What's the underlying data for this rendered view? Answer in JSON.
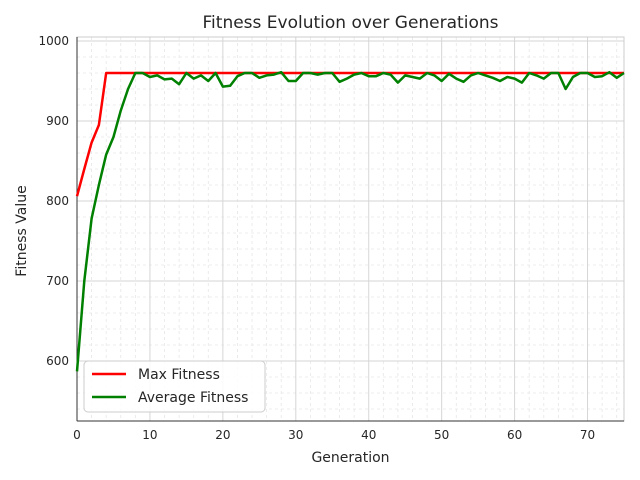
{
  "chart_data": {
    "type": "line",
    "title": "Fitness Evolution over Generations",
    "xlabel": "Generation",
    "ylabel": "Fitness Value",
    "xlim": [
      0,
      75
    ],
    "ylim": [
      525,
      1005
    ],
    "xticks": [
      0,
      10,
      20,
      30,
      40,
      50,
      60,
      70
    ],
    "yticks": [
      600,
      700,
      800,
      900,
      1000
    ],
    "grid": true,
    "minor_grid": true,
    "legend_position": "lower-left",
    "x": [
      0,
      1,
      2,
      3,
      4,
      5,
      6,
      7,
      8,
      9,
      10,
      11,
      12,
      13,
      14,
      15,
      16,
      17,
      18,
      19,
      20,
      21,
      22,
      23,
      24,
      25,
      26,
      27,
      28,
      29,
      30,
      31,
      32,
      33,
      34,
      35,
      36,
      37,
      38,
      39,
      40,
      41,
      42,
      43,
      44,
      45,
      46,
      47,
      48,
      49,
      50,
      51,
      52,
      53,
      54,
      55,
      56,
      57,
      58,
      59,
      60,
      61,
      62,
      63,
      64,
      65,
      66,
      67,
      68,
      69,
      70,
      71,
      72,
      73,
      74,
      75
    ],
    "series": [
      {
        "name": "Max Fitness",
        "color": "#ff0000",
        "values": [
          806,
          840,
          873,
          895,
          960,
          960,
          960,
          960,
          960,
          960,
          960,
          960,
          960,
          960,
          960,
          960,
          960,
          960,
          960,
          960,
          960,
          960,
          960,
          960,
          960,
          960,
          960,
          960,
          960,
          960,
          960,
          960,
          960,
          960,
          960,
          960,
          960,
          960,
          960,
          960,
          960,
          960,
          960,
          960,
          960,
          960,
          960,
          960,
          960,
          960,
          960,
          960,
          960,
          960,
          960,
          960,
          960,
          960,
          960,
          960,
          960,
          960,
          960,
          960,
          960,
          960,
          960,
          960,
          960,
          960,
          960,
          960,
          960,
          960,
          960,
          960
        ]
      },
      {
        "name": "Average Fitness",
        "color": "#008000",
        "values": [
          587,
          700,
          778,
          820,
          858,
          880,
          913,
          940,
          960,
          960,
          955,
          957,
          952,
          953,
          946,
          960,
          953,
          957,
          950,
          960,
          943,
          944,
          956,
          960,
          960,
          954,
          957,
          958,
          961,
          950,
          950,
          960,
          960,
          958,
          960,
          960,
          949,
          953,
          958,
          960,
          956,
          956,
          960,
          958,
          948,
          957,
          955,
          953,
          960,
          957,
          950,
          959,
          953,
          949,
          957,
          960,
          957,
          954,
          950,
          955,
          953,
          948,
          960,
          957,
          953,
          960,
          960,
          940,
          955,
          960,
          960,
          955,
          956,
          961,
          954,
          960
        ]
      }
    ]
  }
}
